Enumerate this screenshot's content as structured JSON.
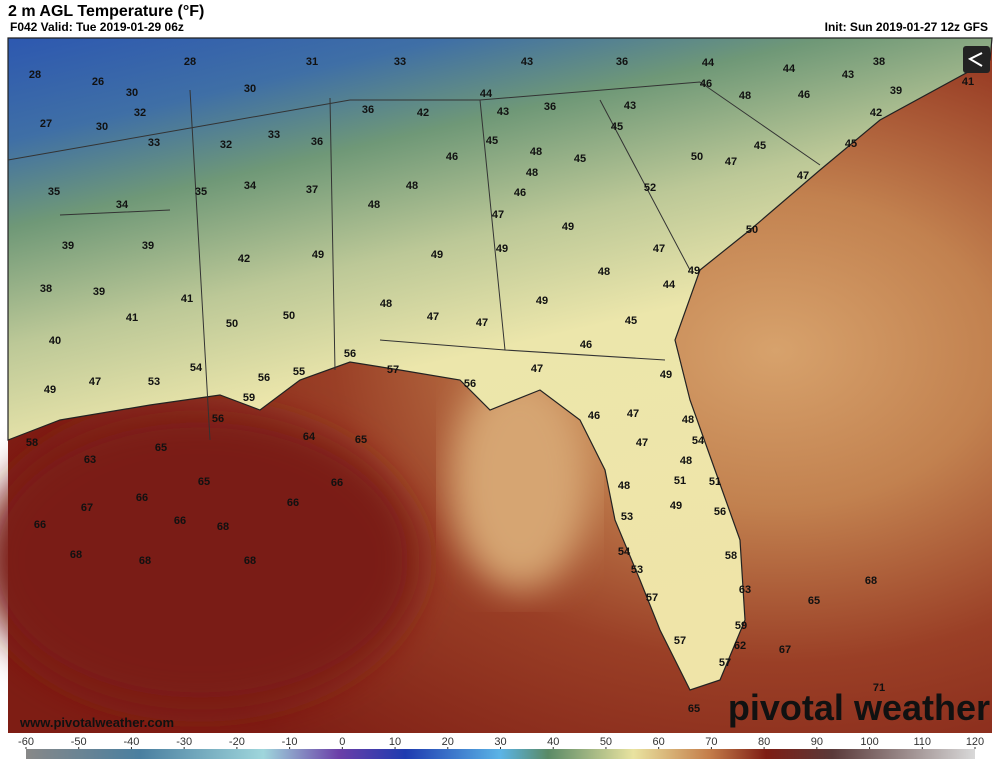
{
  "header": {
    "title": "2 m AGL Temperature (°F)",
    "valid": "F042 Valid: Tue 2019-01-29 06z",
    "init": "Init: Sun 2019-01-27 12z GFS"
  },
  "map": {
    "labels": [
      28,
      26,
      30,
      32,
      27,
      30,
      28,
      31,
      33,
      30,
      33,
      32,
      33,
      36,
      36,
      42,
      43,
      36,
      44,
      44,
      43,
      38,
      39,
      41,
      44,
      43,
      36,
      43,
      46,
      48,
      46,
      42,
      45,
      45,
      45,
      48,
      45,
      46,
      50,
      47,
      45,
      47,
      35,
      35,
      34,
      37,
      48,
      48,
      46,
      52,
      34,
      48,
      47,
      49,
      50,
      39,
      39,
      42,
      49,
      49,
      49,
      47,
      49,
      48,
      44,
      38,
      39,
      41,
      41,
      50,
      50,
      48,
      49,
      47,
      47,
      45,
      40,
      46,
      56,
      54,
      56,
      55,
      57,
      47,
      49,
      49,
      47,
      53,
      59,
      56,
      56,
      46,
      47,
      48,
      58,
      64,
      65,
      65,
      54,
      47,
      63,
      48,
      65,
      66,
      51,
      51,
      48,
      66,
      66,
      49,
      56,
      67,
      66,
      66,
      68,
      53,
      68,
      68,
      68,
      54,
      58,
      53,
      68,
      63,
      57,
      65,
      59,
      57,
      62,
      67,
      57,
      71,
      65
    ]
  },
  "watermark": "www.pivotalweather.com",
  "logo": "pivotal weather",
  "colorbar": {
    "ticks": [
      -60,
      -50,
      -40,
      -30,
      -20,
      -10,
      0,
      10,
      20,
      30,
      40,
      50,
      60,
      70,
      80,
      90,
      100,
      110,
      120
    ]
  }
}
